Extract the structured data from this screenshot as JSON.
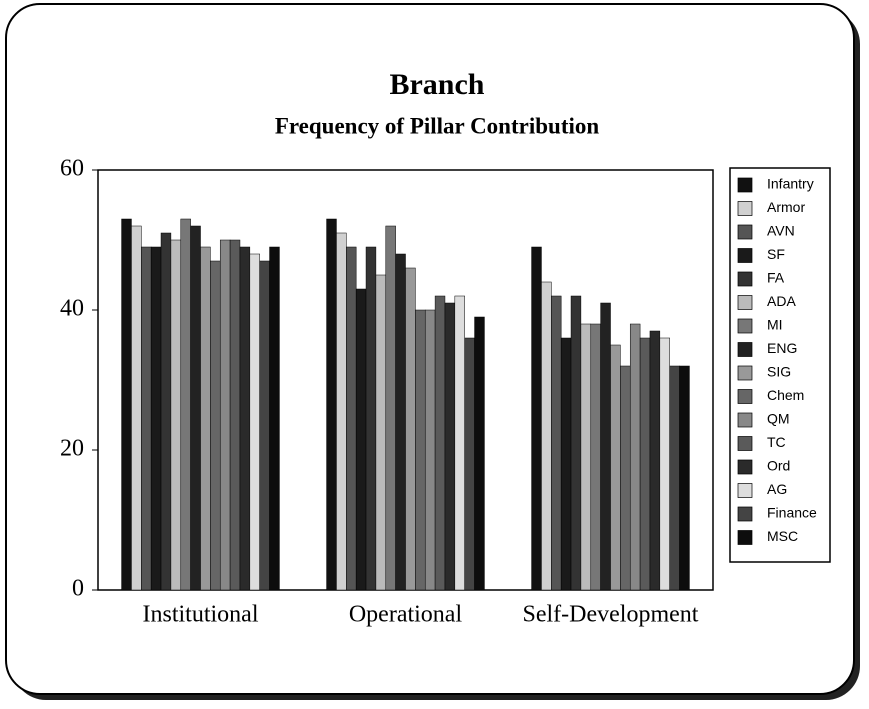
{
  "chart_data": {
    "type": "bar",
    "title": "Branch",
    "subtitle": "Frequency of Pillar Contribution",
    "categories": [
      "Institutional",
      "Operational",
      "Self-Development"
    ],
    "ylim": [
      0,
      60
    ],
    "yticks": [
      0,
      20,
      40,
      60
    ],
    "series": [
      {
        "name": "Infantry",
        "color": "#111111",
        "values": [
          53,
          53,
          49
        ]
      },
      {
        "name": "Armor",
        "color": "#d0d0d0",
        "values": [
          52,
          51,
          44
        ]
      },
      {
        "name": "AVN",
        "color": "#555555",
        "values": [
          49,
          49,
          42
        ]
      },
      {
        "name": "SF",
        "color": "#1a1a1a",
        "values": [
          49,
          43,
          36
        ]
      },
      {
        "name": "FA",
        "color": "#333333",
        "values": [
          51,
          49,
          42
        ]
      },
      {
        "name": "ADA",
        "color": "#bbbbbb",
        "values": [
          50,
          45,
          38
        ]
      },
      {
        "name": "MI",
        "color": "#777777",
        "values": [
          53,
          52,
          38
        ]
      },
      {
        "name": "ENG",
        "color": "#222222",
        "values": [
          52,
          48,
          41
        ]
      },
      {
        "name": "SIG",
        "color": "#999999",
        "values": [
          49,
          46,
          35
        ]
      },
      {
        "name": "Chem",
        "color": "#666666",
        "values": [
          47,
          40,
          32
        ]
      },
      {
        "name": "QM",
        "color": "#888888",
        "values": [
          50,
          40,
          38
        ]
      },
      {
        "name": "TC",
        "color": "#5a5a5a",
        "values": [
          50,
          42,
          36
        ]
      },
      {
        "name": "Ord",
        "color": "#2a2a2a",
        "values": [
          49,
          41,
          37
        ]
      },
      {
        "name": "AG",
        "color": "#dddddd",
        "values": [
          48,
          42,
          36
        ]
      },
      {
        "name": "Finance",
        "color": "#444444",
        "values": [
          47,
          36,
          32
        ]
      },
      {
        "name": "MSC",
        "color": "#0d0d0d",
        "values": [
          49,
          39,
          32
        ]
      }
    ]
  }
}
